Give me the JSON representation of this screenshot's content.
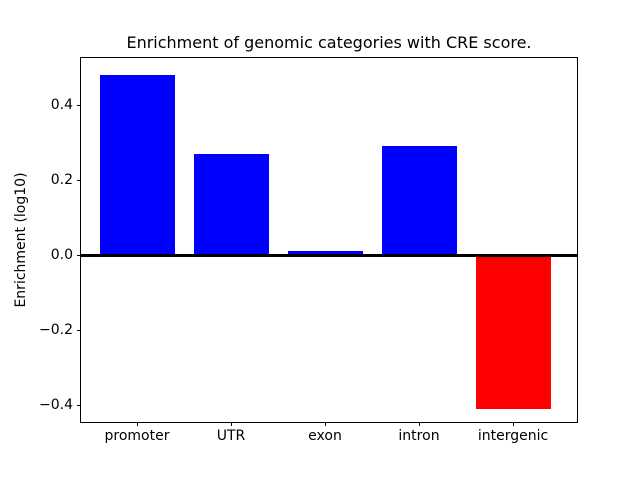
{
  "chart_data": {
    "type": "bar",
    "title": "Enrichment of genomic categories with CRE score.",
    "xlabel": "",
    "ylabel": "Enrichment (log10)",
    "categories": [
      "promoter",
      "UTR",
      "exon",
      "intron",
      "intergenic"
    ],
    "values": [
      0.48,
      0.27,
      0.01,
      0.29,
      -0.41
    ],
    "bar_colors": [
      "#0000ff",
      "#0000ff",
      "#0000ff",
      "#0000ff",
      "#ff0000"
    ],
    "positive_color": "#0000ff",
    "negative_color": "#ff0000",
    "yticks": [
      0.4,
      0.2,
      0.0,
      -0.2,
      -0.4
    ],
    "ytick_labels": [
      "0.4",
      "0.2",
      "0.0",
      "−0.2",
      "−0.4"
    ],
    "ylim": [
      -0.445,
      0.525
    ],
    "grid": false,
    "legend": null,
    "zero_line": true,
    "zero_line_color": "#000000",
    "bar_width_frac": 0.8
  }
}
